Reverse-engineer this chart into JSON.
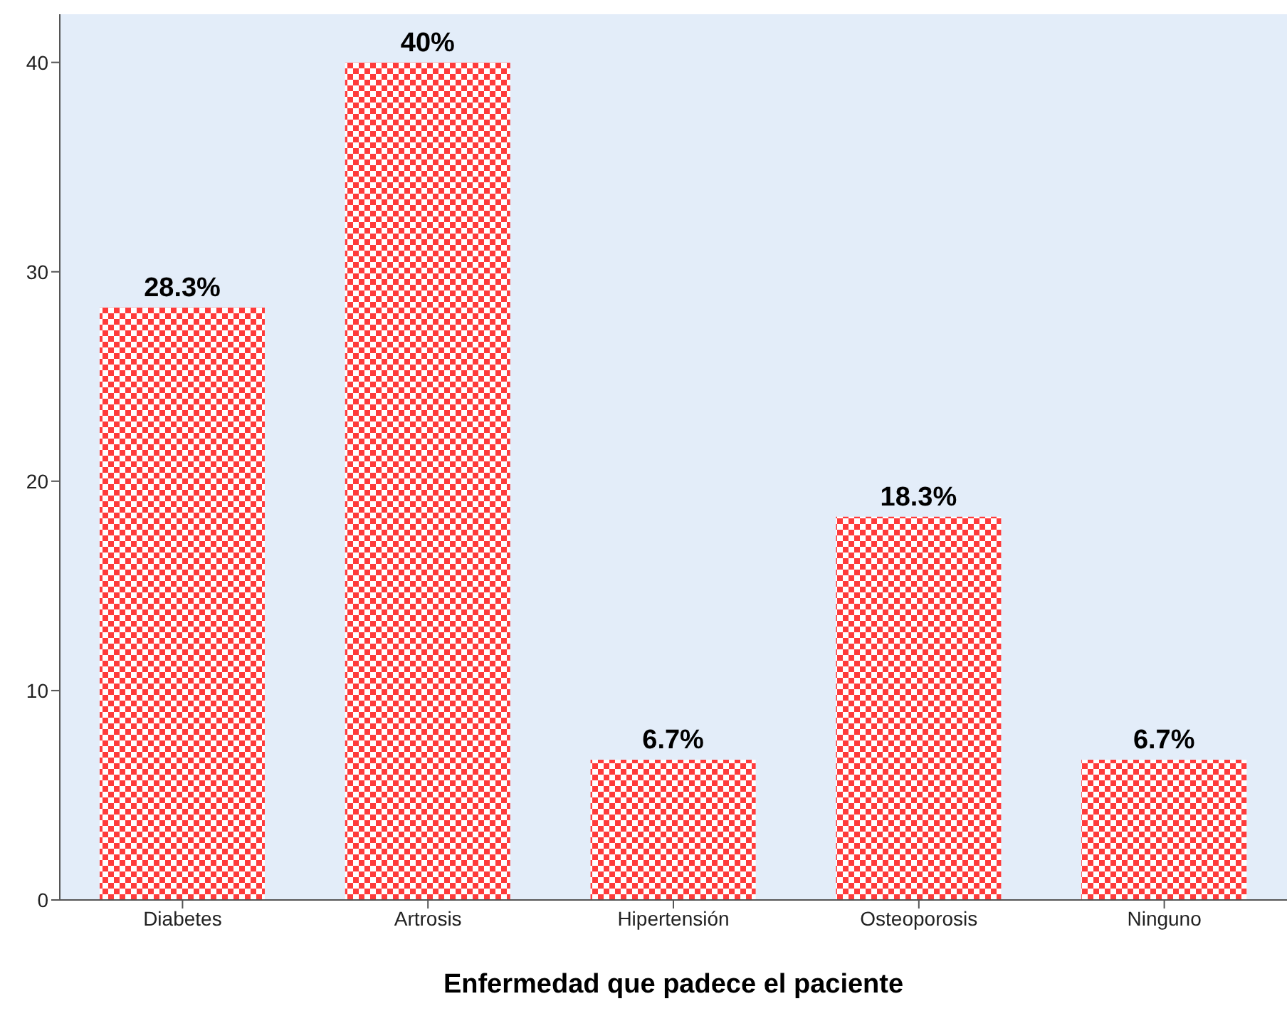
{
  "chart_data": {
    "type": "bar",
    "xlabel": "Enfermedad que padece el paciente",
    "categories": [
      "Diabetes",
      "Artrosis",
      "Hipertensión",
      "Osteoporosis",
      "Ninguno"
    ],
    "values": [
      28.3,
      40,
      6.7,
      18.3,
      6.7
    ],
    "value_labels": [
      "28.3%",
      "40%",
      "6.7%",
      "18.3%",
      "6.7%"
    ],
    "color": "#ff3b3b",
    "ylim": [
      0,
      42.3
    ],
    "yticks": [
      0,
      10,
      20,
      30,
      40
    ],
    "grid": false,
    "legend": false
  }
}
